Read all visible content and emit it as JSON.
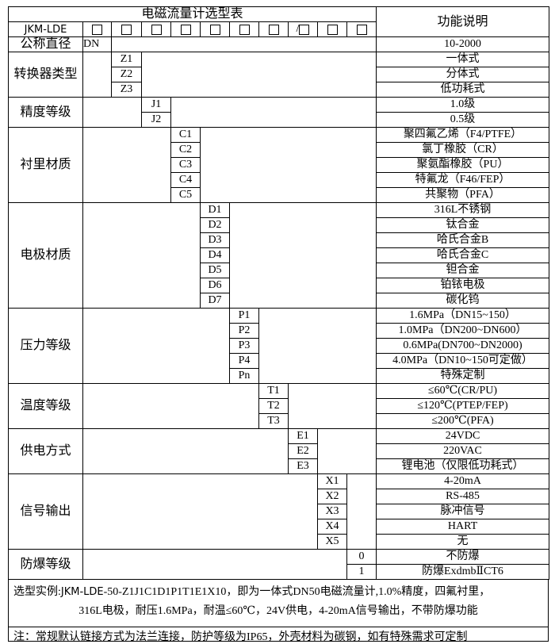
{
  "header": {
    "title": "电磁流量计选型表",
    "model_prefix": "JKM-LDE",
    "function_heading": "功能说明",
    "slot_count": 10,
    "slash_slot_label": "/",
    "slash_slot_index": 8
  },
  "groups": [
    {
      "label": "公称直径",
      "codes": [
        "DN"
      ],
      "descriptions": [
        "10-2000"
      ]
    },
    {
      "label": "转换器类型",
      "codes": [
        "Z1",
        "Z2",
        "Z3"
      ],
      "descriptions": [
        "一体式",
        "分体式",
        "低功耗式"
      ]
    },
    {
      "label": "精度等级",
      "codes": [
        "J1",
        "J2"
      ],
      "descriptions": [
        "1.0级",
        "0.5级"
      ]
    },
    {
      "label": "衬里材质",
      "codes": [
        "C1",
        "C2",
        "C3",
        "C4",
        "C5"
      ],
      "descriptions": [
        "聚四氟乙烯（F4/PTFE）",
        "氯丁橡胶（CR）",
        "聚氨酯橡胶（PU）",
        "特氟龙（F46/FEP）",
        "共聚物（PFA）"
      ]
    },
    {
      "label": "电极材质",
      "codes": [
        "D1",
        "D2",
        "D3",
        "D4",
        "D5",
        "D6",
        "D7"
      ],
      "descriptions": [
        "316L不锈钢",
        "钛合金",
        "哈氏合金B",
        "哈氏合金C",
        "钽合金",
        "铂铱电极",
        "碳化钨"
      ]
    },
    {
      "label": "压力等级",
      "codes": [
        "P1",
        "P2",
        "P3",
        "P4",
        "Pn"
      ],
      "descriptions": [
        "1.6MPa（DN15~150）",
        "1.0MPa（DN200~DN600）",
        "0.6MPa(DN700~DN2000)",
        "4.0MPa（DN10~150可定做）",
        "特殊定制"
      ]
    },
    {
      "label": "温度等级",
      "codes": [
        "T1",
        "T2",
        "T3"
      ],
      "descriptions": [
        "≤60℃(CR/PU)",
        "≤120℃(PTEP/FEP)",
        "≤200℃(PFA)"
      ]
    },
    {
      "label": "供电方式",
      "codes": [
        "E1",
        "E2",
        "E3"
      ],
      "descriptions": [
        "24VDC",
        "220VAC",
        "锂电池（仅限低功耗式）"
      ]
    },
    {
      "label": "信号输出",
      "codes": [
        "X1",
        "X2",
        "X3",
        "X4",
        "X5"
      ],
      "descriptions": [
        "4-20mA",
        "RS-485",
        "脉冲信号",
        "HART",
        "无"
      ]
    },
    {
      "label": "防爆等级",
      "codes": [
        "0",
        "1"
      ],
      "descriptions": [
        "不防爆",
        "防爆ExdmbⅡCT6"
      ]
    }
  ],
  "footer": {
    "example_prefix": "选型实例:",
    "example_model": "JKM-LDE",
    "example_line1": "-50-Z1J1C1D1P1T1E1X10，即为一体式DN50电磁流量计,1.0%精度，四氟衬里，",
    "example_line2": "316L电极，耐压1.6MPa，耐温≤60℃，24V供电，4-20mA信号输出，不带防爆功能",
    "note": "注：常规默认链接方式为法兰连接，防护等级为IP65，外壳材料为碳钢，如有特殊需求可定制"
  }
}
